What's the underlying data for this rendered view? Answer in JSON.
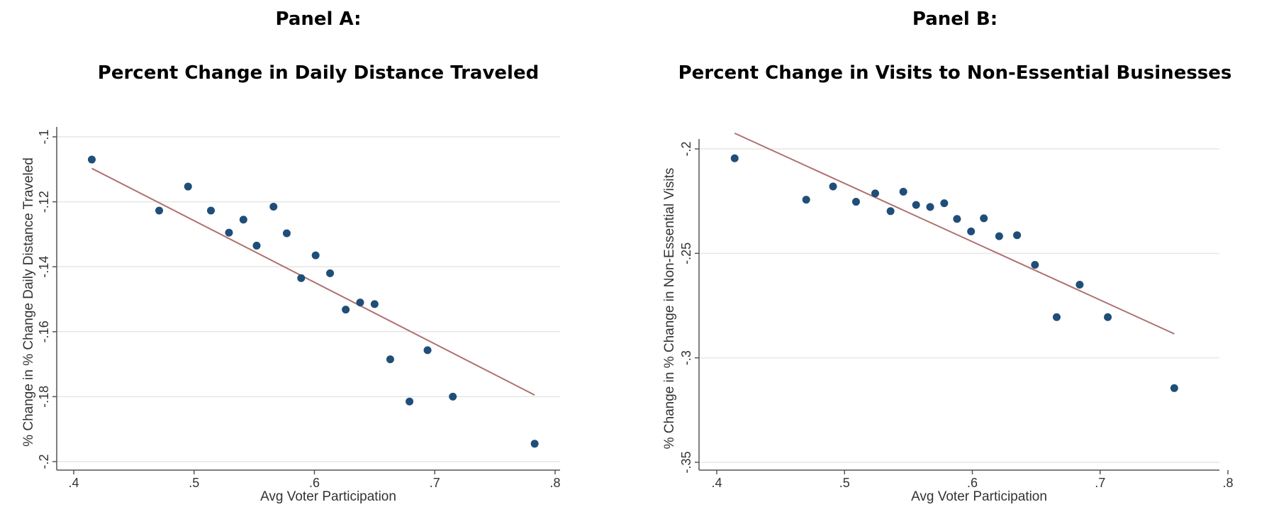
{
  "chart_data": [
    {
      "type": "scatter",
      "panel_label": "Panel A:",
      "title": "Percent Change in Daily Distance Traveled",
      "xlabel": "Avg Voter Participation",
      "ylabel": "% Change in % Change Daily Distance Traveled",
      "xlim": [
        0.4,
        0.8
      ],
      "ylim": [
        -0.2,
        -0.1
      ],
      "x_ticks": [
        0.4,
        0.5,
        0.6,
        0.7,
        0.8
      ],
      "x_tick_labels": [
        ".4",
        ".5",
        ".6",
        ".7",
        ".8"
      ],
      "y_ticks": [
        -0.2,
        -0.18,
        -0.16,
        -0.14,
        -0.12,
        -0.1
      ],
      "y_tick_labels": [
        "-.2",
        "-.18",
        "-.16",
        "-.14",
        "-.12",
        "-.1"
      ],
      "grid": true,
      "colors": {
        "point": "#1f4e79",
        "fit_line": "#b07070",
        "grid": "#e6e6e6",
        "axis": "#555555"
      },
      "points": [
        {
          "x": 0.415,
          "y": -0.107
        },
        {
          "x": 0.471,
          "y": -0.1227
        },
        {
          "x": 0.495,
          "y": -0.1153
        },
        {
          "x": 0.514,
          "y": -0.1227
        },
        {
          "x": 0.529,
          "y": -0.1295
        },
        {
          "x": 0.541,
          "y": -0.1255
        },
        {
          "x": 0.552,
          "y": -0.1335
        },
        {
          "x": 0.566,
          "y": -0.1215
        },
        {
          "x": 0.577,
          "y": -0.1297
        },
        {
          "x": 0.589,
          "y": -0.1435
        },
        {
          "x": 0.601,
          "y": -0.1365
        },
        {
          "x": 0.613,
          "y": -0.142
        },
        {
          "x": 0.626,
          "y": -0.1532
        },
        {
          "x": 0.638,
          "y": -0.151
        },
        {
          "x": 0.65,
          "y": -0.1515
        },
        {
          "x": 0.663,
          "y": -0.1685
        },
        {
          "x": 0.679,
          "y": -0.1815
        },
        {
          "x": 0.694,
          "y": -0.1657
        },
        {
          "x": 0.715,
          "y": -0.18
        },
        {
          "x": 0.783,
          "y": -0.1945
        }
      ],
      "fit_line": [
        {
          "x": 0.415,
          "y": -0.1097
        },
        {
          "x": 0.783,
          "y": -0.1795
        }
      ]
    },
    {
      "type": "scatter",
      "panel_label": "Panel B:",
      "title": "Percent Change in Visits to Non-Essential Businesses",
      "xlabel": "Avg Voter Participation",
      "ylabel": "% Change in % Change in Non-Essential Visits",
      "xlim": [
        0.4,
        0.8
      ],
      "ylim": [
        -0.35,
        -0.2
      ],
      "x_ticks": [
        0.4,
        0.5,
        0.6,
        0.7,
        0.8
      ],
      "x_tick_labels": [
        ".4",
        ".5",
        ".6",
        ".7",
        ".8"
      ],
      "y_ticks": [
        -0.35,
        -0.3,
        -0.25,
        -0.2
      ],
      "y_tick_labels": [
        "-.35",
        "-.3",
        "-.25",
        "-.2"
      ],
      "grid": true,
      "colors": {
        "point": "#1f4e79",
        "fit_line": "#b07070",
        "grid": "#e6e6e6",
        "axis": "#555555"
      },
      "points": [
        {
          "x": 0.414,
          "y": -0.2045
        },
        {
          "x": 0.47,
          "y": -0.2243
        },
        {
          "x": 0.491,
          "y": -0.218
        },
        {
          "x": 0.509,
          "y": -0.2253
        },
        {
          "x": 0.524,
          "y": -0.2213
        },
        {
          "x": 0.536,
          "y": -0.2298
        },
        {
          "x": 0.546,
          "y": -0.2205
        },
        {
          "x": 0.556,
          "y": -0.2268
        },
        {
          "x": 0.567,
          "y": -0.2278
        },
        {
          "x": 0.578,
          "y": -0.226
        },
        {
          "x": 0.588,
          "y": -0.2335
        },
        {
          "x": 0.599,
          "y": -0.2395
        },
        {
          "x": 0.609,
          "y": -0.2332
        },
        {
          "x": 0.621,
          "y": -0.2418
        },
        {
          "x": 0.635,
          "y": -0.2413
        },
        {
          "x": 0.649,
          "y": -0.2555
        },
        {
          "x": 0.666,
          "y": -0.2805
        },
        {
          "x": 0.684,
          "y": -0.265
        },
        {
          "x": 0.706,
          "y": -0.2805
        },
        {
          "x": 0.758,
          "y": -0.3145
        }
      ],
      "fit_line": [
        {
          "x": 0.414,
          "y": -0.1925
        },
        {
          "x": 0.758,
          "y": -0.2885
        }
      ]
    }
  ]
}
